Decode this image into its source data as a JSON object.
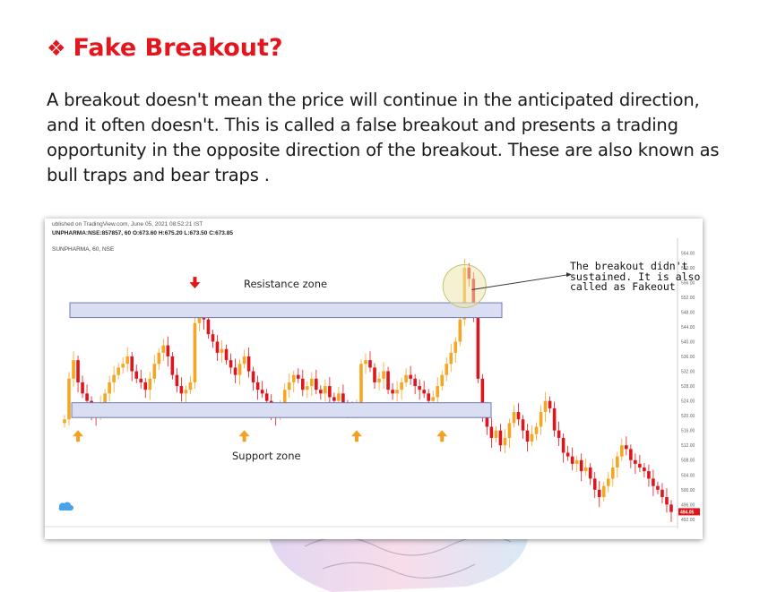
{
  "heading": {
    "bullet": "❖",
    "title": "Fake Breakout?"
  },
  "paragraph": "A breakout doesn't mean the price will continue in the anticipated direction, and it often doesn't. This is called a false breakout and presents a trading opportunity in the opposite direction of the breakout. These are also known as bull traps and bear traps .",
  "chart_data": {
    "type": "candlestick",
    "meta_line1": "ublished on TradingView.com, June 05, 2021 08:52:21 IST",
    "meta_line2": "UNPHARMA:NSE:857857, 60 O:673.60 H:675.20 L:673.50 C:673.85",
    "symbol_line": "SUNPHARMA, 60, NSE",
    "resistance_label": "Resistance zone",
    "support_label": "Support zone",
    "annotation_lines": [
      "The breakout didn't",
      "sustained. It is also",
      "called as Fakeout"
    ],
    "y_ticks": [
      "564.00",
      "560.00",
      "556.00",
      "552.00",
      "548.00",
      "544.00",
      "540.00",
      "536.00",
      "532.00",
      "528.00",
      "524.00",
      "520.00",
      "516.00",
      "512.00",
      "508.00",
      "504.00",
      "500.00",
      "496.00",
      "492.00"
    ],
    "last_price": "494.05",
    "ylim": [
      491,
      566
    ],
    "closes": [
      519,
      530,
      535,
      529,
      526,
      524,
      521,
      520,
      523,
      526,
      529,
      531,
      533,
      534,
      536,
      532,
      530,
      529,
      527,
      530,
      534,
      537,
      539,
      536,
      531,
      528,
      526,
      527,
      529,
      545,
      548,
      546,
      542,
      540,
      537,
      538,
      535,
      533,
      531,
      534,
      536,
      532,
      529,
      527,
      526,
      524,
      521,
      520,
      523,
      527,
      529,
      531,
      530,
      527,
      528,
      530,
      527,
      526,
      528,
      525,
      524,
      526,
      523,
      522,
      521,
      522,
      534,
      535,
      533,
      529,
      530,
      532,
      527,
      526,
      527,
      529,
      531,
      530,
      528,
      527,
      526,
      524,
      525,
      528,
      531,
      534,
      537,
      540,
      546,
      560,
      557,
      548,
      530,
      520,
      517,
      514,
      516,
      512,
      514,
      518,
      521,
      519,
      516,
      513,
      515,
      517,
      521,
      524,
      522,
      516,
      514,
      510,
      509,
      507,
      508,
      505,
      506,
      503,
      500,
      498,
      501,
      503,
      506,
      509,
      512,
      511,
      508,
      507,
      506,
      505,
      503,
      501,
      500,
      498,
      496,
      494
    ],
    "up_arrows_at_index": [
      3,
      40,
      65,
      84
    ],
    "down_arrow_at_index": 29
  }
}
